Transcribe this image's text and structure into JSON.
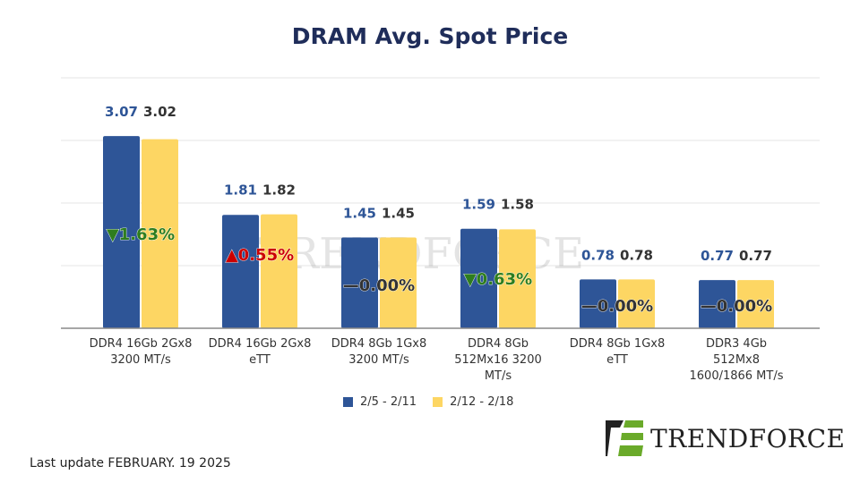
{
  "chart_data": {
    "type": "bar",
    "title": "DRAM Avg. Spot Price",
    "categories": [
      [
        "DDR4 16Gb 2Gx8",
        "3200 MT/s"
      ],
      [
        "DDR4 16Gb 2Gx8",
        "eTT"
      ],
      [
        "DDR4 8Gb 1Gx8",
        "3200 MT/s"
      ],
      [
        "DDR4 8Gb",
        "512Mx16 3200",
        "MT/s"
      ],
      [
        "DDR4 8Gb 1Gx8",
        "eTT"
      ],
      [
        "DDR3 4Gb",
        "512Mx8",
        "1600/1866  MT/s"
      ]
    ],
    "series": [
      {
        "name": "2/5 - 2/11",
        "color": "#2e5597",
        "values": [
          3.07,
          1.81,
          1.45,
          1.59,
          0.78,
          0.77
        ],
        "labels": [
          "3.07",
          "1.81",
          "1.45",
          "1.59",
          "0.78",
          "0.77"
        ]
      },
      {
        "name": "2/12 - 2/18",
        "color": "#fdd663",
        "values": [
          3.02,
          1.82,
          1.45,
          1.58,
          0.78,
          0.77
        ],
        "labels": [
          "3.02",
          "1.82",
          "1.45",
          "1.58",
          "0.78",
          "0.77"
        ]
      }
    ],
    "changes": [
      {
        "symbol": "▼",
        "text": "1.63%",
        "color": "#2e7d1e"
      },
      {
        "symbol": "▲",
        "text": "0.55%",
        "color": "#cc0000"
      },
      {
        "symbol": "—",
        "text": "0.00%",
        "color": "#333333"
      },
      {
        "symbol": "▼",
        "text": "0.63%",
        "color": "#2e7d1e"
      },
      {
        "symbol": "—",
        "text": "0.00%",
        "color": "#333333"
      },
      {
        "symbol": "—",
        "text": "0.00%",
        "color": "#333333"
      }
    ],
    "ylim": [
      0,
      4
    ],
    "grid": true,
    "legend": "bottom"
  },
  "footer": {
    "last_update": "Last update FEBRUARY. 19  2025"
  },
  "logo": {
    "text": "TRENDFORCE",
    "watermark": "TRENDFORCE"
  }
}
